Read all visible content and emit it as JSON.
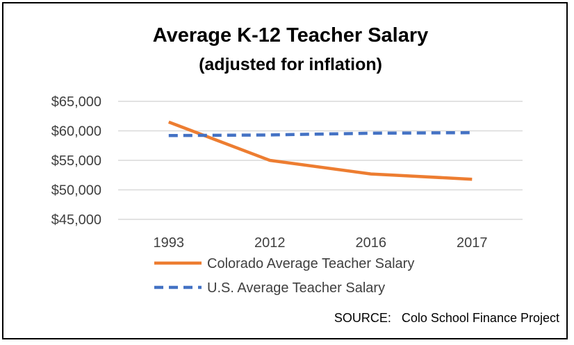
{
  "chart_data": {
    "type": "line",
    "title": "Average K-12 Teacher Salary",
    "subtitle": "(adjusted for inflation)",
    "categories": [
      "1993",
      "2012",
      "2016",
      "2017"
    ],
    "series": [
      {
        "name": "Colorado Average Teacher Salary",
        "values": [
          61500,
          55000,
          52700,
          51800
        ],
        "color": "#ED7D31",
        "dash": "solid"
      },
      {
        "name": "U.S. Average Teacher Salary",
        "values": [
          59200,
          59300,
          59600,
          59700
        ],
        "color": "#4472C4",
        "dash": "dashed"
      }
    ],
    "ylim": [
      45000,
      65000
    ],
    "yticks": [
      65000,
      60000,
      55000,
      50000,
      45000
    ],
    "ytick_labels": [
      "$65,000",
      "$60,000",
      "$55,000",
      "$50,000",
      "$45,000"
    ],
    "grid": true,
    "legend_position": "bottom",
    "source": "SOURCE:   Colo School Finance Project"
  }
}
